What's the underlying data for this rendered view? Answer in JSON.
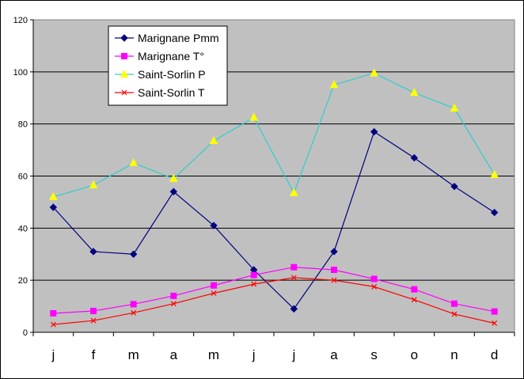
{
  "chart_data": {
    "type": "line",
    "title": "",
    "xlabel": "",
    "ylabel": "",
    "categories": [
      "j",
      "f",
      "m",
      "a",
      "m",
      "j",
      "j",
      "a",
      "s",
      "o",
      "n",
      "d"
    ],
    "ylim": [
      0,
      120
    ],
    "yticks": [
      0,
      20,
      40,
      60,
      80,
      100,
      120
    ],
    "grid": true,
    "legend_position": "top-left",
    "series": [
      {
        "name": "Marignane Pmm",
        "color": "#000080",
        "marker": "diamond",
        "values": [
          48,
          31,
          30,
          54,
          41,
          24,
          9,
          31,
          77,
          67,
          56,
          46
        ]
      },
      {
        "name": "Marignane T°",
        "color": "#FF00FF",
        "marker": "square",
        "values": [
          7.3,
          8.2,
          10.8,
          14,
          18,
          22,
          25,
          24,
          20.5,
          16.5,
          11,
          8
        ]
      },
      {
        "name": "Saint-Sorlin P",
        "color": "#33CCCC",
        "marker_color": "#FFFF00",
        "marker": "triangle",
        "values": [
          52,
          56.5,
          65,
          59,
          73.5,
          82.5,
          53.5,
          95,
          99.5,
          92,
          86,
          60.5
        ]
      },
      {
        "name": "Saint-Sorlin T",
        "color": "#FF0000",
        "marker": "x",
        "values": [
          3,
          4.5,
          7.5,
          11,
          15,
          18.5,
          21,
          20,
          17.5,
          12.5,
          7,
          3.5
        ]
      }
    ],
    "colors": {
      "plot_background": "#C0C0C0",
      "grid_line": "#000000",
      "page_background": "#FFFFFF",
      "legend_background": "#FFFFFF"
    }
  }
}
